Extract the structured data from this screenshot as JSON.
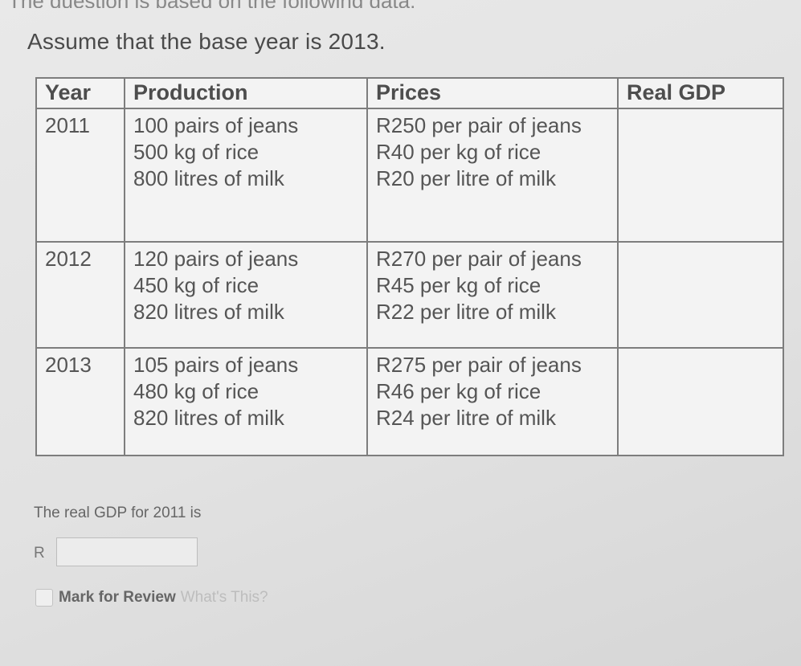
{
  "header_fragment": "The question is based on the following data:",
  "intro": "Assume that the base year is 2013.",
  "table": {
    "headers": {
      "year": "Year",
      "production": "Production",
      "prices": "Prices",
      "real_gdp": "Real GDP"
    },
    "rows": [
      {
        "year": "2011",
        "production": [
          "100 pairs of jeans",
          "500 kg of rice",
          "800 litres of milk"
        ],
        "prices": [
          "R250 per pair of jeans",
          "R40 per kg of rice",
          "R20 per litre of milk"
        ],
        "real_gdp": ""
      },
      {
        "year": "2012",
        "production": [
          "120 pairs of jeans",
          "450 kg of rice",
          "820 litres of milk"
        ],
        "prices": [
          "R270 per pair of jeans",
          "R45 per kg of rice",
          "R22 per litre of milk"
        ],
        "real_gdp": ""
      },
      {
        "year": "2013",
        "production": [
          "105 pairs of jeans",
          "480 kg of rice",
          "820 litres of milk"
        ],
        "prices": [
          "R275 per pair of jeans",
          "R46 per kg of rice",
          "R24 per litre of milk"
        ],
        "real_gdp": ""
      }
    ]
  },
  "question": {
    "text": "The real GDP for 2011 is",
    "currency_label": "R",
    "answer_value": ""
  },
  "review": {
    "checked": false,
    "label": "Mark for Review",
    "help_link": "What's This?"
  }
}
